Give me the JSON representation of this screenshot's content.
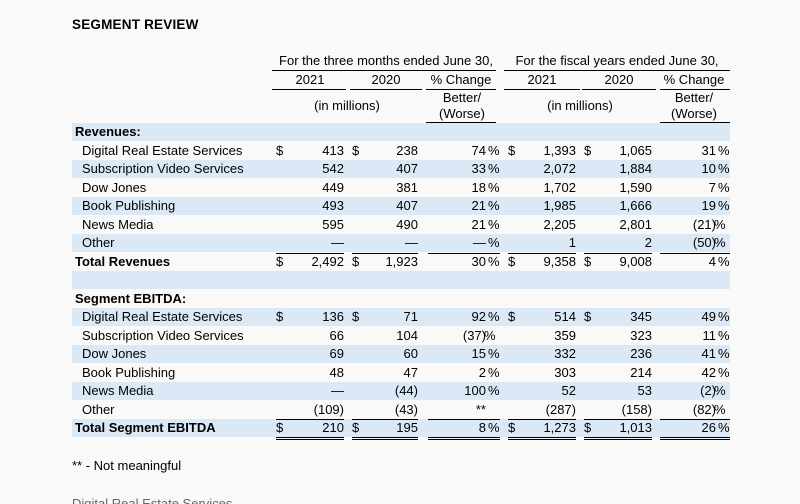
{
  "title": "SEGMENT REVIEW",
  "headers": {
    "three_months": "For the three months ended June 30,",
    "fiscal_years": "For the fiscal years ended June 30,",
    "y2021": "2021",
    "y2020": "2020",
    "pct_change": "% Change",
    "in_millions": "(in millions)",
    "better_line1": "Better/",
    "better_line2": "(Worse)"
  },
  "revenues_label": "Revenues:",
  "revenues": [
    {
      "label": "Digital Real Estate Services",
      "q2021": "413",
      "q2020": "238",
      "qpct": "74",
      "fy2021": "1,393",
      "fy2020": "1,065",
      "fypct": "31",
      "dollar": true
    },
    {
      "label": "Subscription Video Services",
      "q2021": "542",
      "q2020": "407",
      "qpct": "33",
      "fy2021": "2,072",
      "fy2020": "1,884",
      "fypct": "10",
      "dollar": false
    },
    {
      "label": "Dow Jones",
      "q2021": "449",
      "q2020": "381",
      "qpct": "18",
      "fy2021": "1,702",
      "fy2020": "1,590",
      "fypct": "7",
      "dollar": false
    },
    {
      "label": "Book Publishing",
      "q2021": "493",
      "q2020": "407",
      "qpct": "21",
      "fy2021": "1,985",
      "fy2020": "1,666",
      "fypct": "19",
      "dollar": false
    },
    {
      "label": "News Media",
      "q2021": "595",
      "q2020": "490",
      "qpct": "21",
      "fy2021": "2,205",
      "fy2020": "2,801",
      "fypct": "(21)",
      "dollar": false
    },
    {
      "label": "Other",
      "q2021": "—",
      "q2020": "—",
      "qpct": "—",
      "fy2021": "1",
      "fy2020": "2",
      "fypct": "(50)",
      "dollar": false
    }
  ],
  "total_revenues": {
    "label": "Total Revenues",
    "q2021": "2,492",
    "q2020": "1,923",
    "qpct": "30",
    "fy2021": "9,358",
    "fy2020": "9,008",
    "fypct": "4"
  },
  "ebitda_label": "Segment EBITDA:",
  "ebitda": [
    {
      "label": "Digital Real Estate Services",
      "q2021": "136",
      "q2020": "71",
      "qpct": "92",
      "fy2021": "514",
      "fy2020": "345",
      "fypct": "49",
      "dollar": true
    },
    {
      "label": "Subscription Video Services",
      "q2021": "66",
      "q2020": "104",
      "qpct": "(37)",
      "fy2021": "359",
      "fy2020": "323",
      "fypct": "11",
      "dollar": false
    },
    {
      "label": "Dow Jones",
      "q2021": "69",
      "q2020": "60",
      "qpct": "15",
      "fy2021": "332",
      "fy2020": "236",
      "fypct": "41",
      "dollar": false
    },
    {
      "label": "Book Publishing",
      "q2021": "48",
      "q2020": "47",
      "qpct": "2",
      "fy2021": "303",
      "fy2020": "214",
      "fypct": "42",
      "dollar": false
    },
    {
      "label": "News Media",
      "q2021": "—",
      "q2020": "(44)",
      "qpct": "100",
      "fy2021": "52",
      "fy2020": "53",
      "fypct": "(2)",
      "dollar": false
    },
    {
      "label": "Other",
      "q2021": "(109)",
      "q2020": "(43)",
      "qpct": "**",
      "fy2021": "(287)",
      "fy2020": "(158)",
      "fypct": "(82)",
      "dollar": false
    }
  ],
  "total_ebitda": {
    "label": "Total Segment EBITDA",
    "q2021": "210",
    "q2020": "195",
    "qpct": "8",
    "fy2021": "1,273",
    "fy2020": "1,013",
    "fypct": "26"
  },
  "symbols": {
    "dollar": "$",
    "percent": "%"
  },
  "footnote": "** - Not meaningful",
  "next_section": "Digital Real Estate Services"
}
